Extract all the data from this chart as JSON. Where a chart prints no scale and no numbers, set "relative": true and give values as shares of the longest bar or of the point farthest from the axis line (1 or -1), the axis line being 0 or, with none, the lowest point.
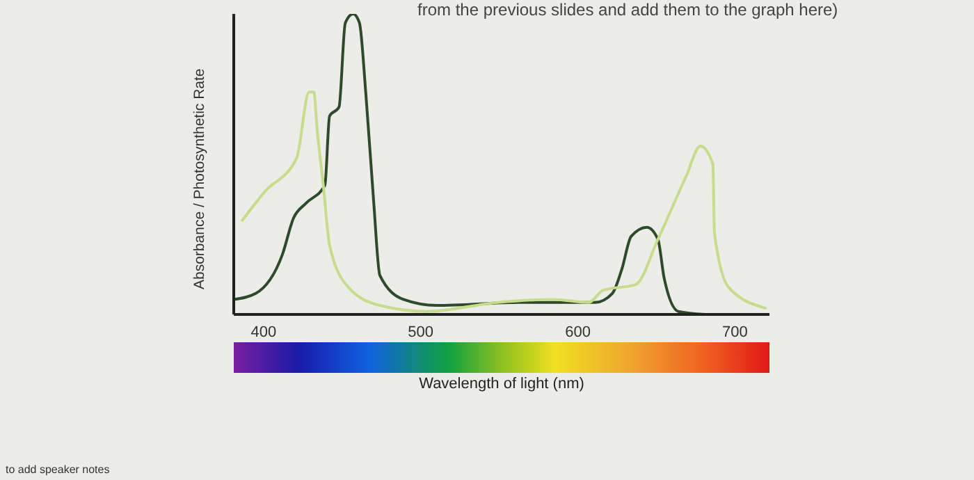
{
  "chart_data": {
    "type": "line",
    "relative": true,
    "xlabel": "Wavelength of light (nm)",
    "ylabel": "Absorbance / Photosynthetic Rate",
    "xlim": [
      381,
      722
    ],
    "xticks": [
      400,
      500,
      600,
      700
    ],
    "marker": "none",
    "line_style": "solid",
    "annotations": [
      "from the previous slides and add them to the graph here)",
      "to add speaker notes"
    ],
    "series": [
      {
        "color": "#2d4a2b",
        "x": [
          381,
          395,
          412,
          419,
          427,
          439,
          442,
          448,
          452,
          457,
          461,
          465,
          470,
          474,
          489,
          510,
          563,
          611,
          622,
          628,
          634,
          644,
          651,
          655,
          664,
          681
        ],
        "values": [
          0.05,
          0.07,
          0.2,
          0.32,
          0.37,
          0.43,
          0.66,
          0.69,
          0.97,
          1,
          0.97,
          0.74,
          0.38,
          0.13,
          0.05,
          0.03,
          0.04,
          0.04,
          0.07,
          0.15,
          0.26,
          0.29,
          0.25,
          0.12,
          0.01,
          0
        ]
      },
      {
        "color": "#c5dc8a",
        "x": [
          386,
          401,
          421,
          429,
          432,
          434,
          438,
          442,
          454,
          474,
          504,
          549,
          584,
          607,
          616,
          637,
          651,
          669,
          678,
          686,
          687,
          696,
          720
        ],
        "values": [
          0.31,
          0.41,
          0.52,
          0.74,
          0.74,
          0.62,
          0.43,
          0.23,
          0.09,
          0.03,
          0.01,
          0.04,
          0.05,
          0.04,
          0.08,
          0.1,
          0.25,
          0.46,
          0.56,
          0.5,
          0.27,
          0.09,
          0.02
        ]
      }
    ]
  }
}
